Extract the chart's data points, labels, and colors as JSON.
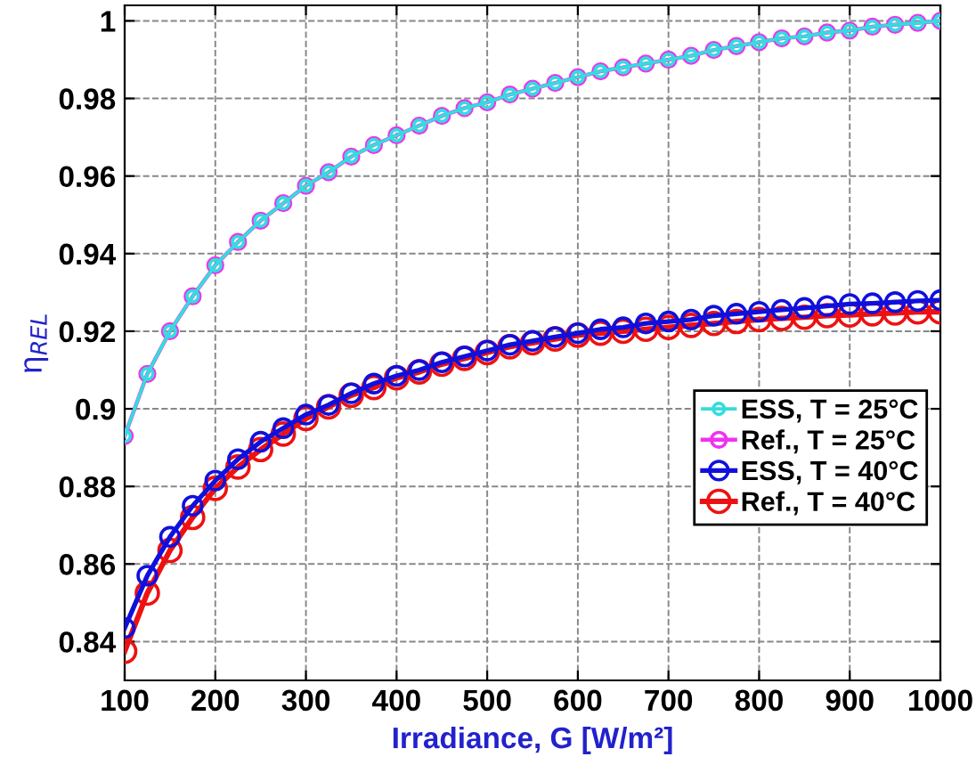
{
  "chart_data": {
    "type": "line",
    "xlabel": "Irradiance, G [W/m²]",
    "ylabel": "η$_{REL}$",
    "x": [
      100,
      125,
      150,
      175,
      200,
      225,
      250,
      275,
      300,
      325,
      350,
      375,
      400,
      425,
      450,
      475,
      500,
      525,
      550,
      575,
      600,
      625,
      650,
      675,
      700,
      725,
      750,
      775,
      800,
      825,
      850,
      875,
      900,
      925,
      950,
      975,
      1000
    ],
    "xlim": [
      100,
      1000
    ],
    "xticks": [
      100,
      200,
      300,
      400,
      500,
      600,
      700,
      800,
      900,
      1000
    ],
    "ylim": [
      0.83,
      1.004
    ],
    "yticks": [
      0.84,
      0.86,
      0.88,
      0.9,
      0.92,
      0.94,
      0.96,
      0.98,
      1
    ],
    "grid": true,
    "legend": "right",
    "marker": "circle",
    "line_style": "solid",
    "series": [
      {
        "name": "ESS, T = 25°C",
        "color": "#33dddd",
        "values": [
          0.893,
          0.909,
          0.92,
          0.929,
          0.937,
          0.943,
          0.9485,
          0.953,
          0.9575,
          0.961,
          0.965,
          0.968,
          0.9705,
          0.973,
          0.9755,
          0.9775,
          0.979,
          0.981,
          0.9825,
          0.984,
          0.9855,
          0.987,
          0.988,
          0.989,
          0.99,
          0.991,
          0.9925,
          0.9935,
          0.9945,
          0.9955,
          0.996,
          0.997,
          0.9975,
          0.9985,
          0.999,
          0.9995,
          1.0
        ]
      },
      {
        "name": "Ref., T = 25°C",
        "color": "#ee33ee",
        "values": [
          0.893,
          0.909,
          0.92,
          0.929,
          0.937,
          0.943,
          0.9485,
          0.953,
          0.9575,
          0.961,
          0.965,
          0.968,
          0.9705,
          0.973,
          0.9755,
          0.9775,
          0.979,
          0.981,
          0.9825,
          0.984,
          0.9855,
          0.987,
          0.988,
          0.989,
          0.99,
          0.991,
          0.9925,
          0.9935,
          0.9945,
          0.9955,
          0.996,
          0.997,
          0.9975,
          0.9985,
          0.999,
          0.9995,
          1.0
        ]
      },
      {
        "name": "ESS, T = 40°C",
        "color": "#1010dd",
        "values": [
          0.8435,
          0.857,
          0.867,
          0.875,
          0.8815,
          0.887,
          0.8915,
          0.895,
          0.8985,
          0.901,
          0.904,
          0.9065,
          0.9085,
          0.91,
          0.912,
          0.9135,
          0.915,
          0.9165,
          0.9175,
          0.9185,
          0.9195,
          0.9205,
          0.921,
          0.922,
          0.9225,
          0.923,
          0.924,
          0.9245,
          0.925,
          0.9255,
          0.926,
          0.9265,
          0.927,
          0.9272,
          0.9275,
          0.9278,
          0.928
        ]
      },
      {
        "name": "Ref., T = 40°C",
        "color": "#ee1111",
        "values": [
          0.8375,
          0.8525,
          0.8635,
          0.872,
          0.8795,
          0.885,
          0.8895,
          0.8935,
          0.8975,
          0.9005,
          0.9035,
          0.9055,
          0.908,
          0.9095,
          0.9115,
          0.913,
          0.9145,
          0.916,
          0.917,
          0.918,
          0.919,
          0.9195,
          0.92,
          0.9205,
          0.921,
          0.9215,
          0.922,
          0.9225,
          0.923,
          0.9233,
          0.9236,
          0.924,
          0.9242,
          0.9245,
          0.9247,
          0.925,
          0.925
        ]
      }
    ]
  }
}
